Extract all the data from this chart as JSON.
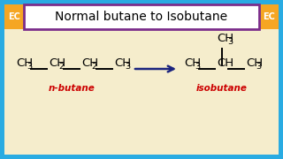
{
  "title": "Normal butane to Isobutane",
  "title_fontsize": 10,
  "bg_outer": "#29ABE2",
  "bg_inner": "#F5EDCC",
  "title_box_edgecolor": "#7B2D8B",
  "title_box_bg": "white",
  "ec_label_bg": "#F5A623",
  "ec_text_color": "white",
  "label_color": "#CC0000",
  "arrow_color": "#1A237E",
  "n_butane_label": "n-butane",
  "isobutane_label": "isobutane",
  "struct_fontsize": 9.5,
  "struct_sub_fontsize": 6.8
}
